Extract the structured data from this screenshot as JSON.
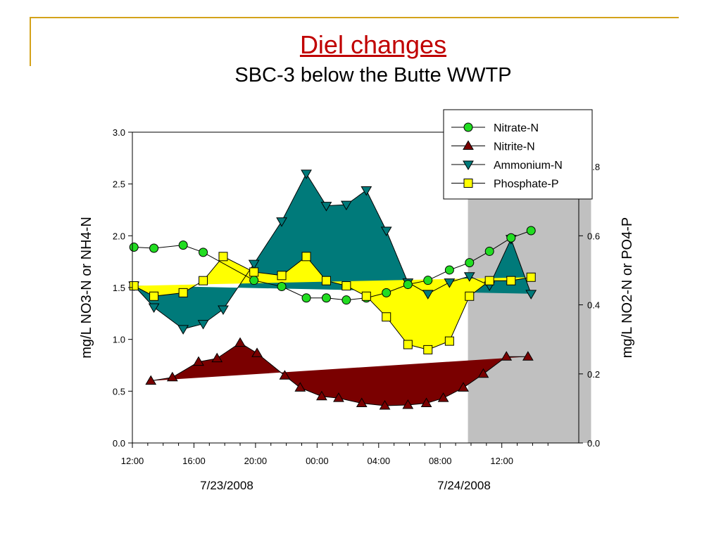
{
  "slide": {
    "title": "Diel changes",
    "subtitle": "SBC-3 below the Butte WWTP"
  },
  "chart_data": {
    "type": "line",
    "left_axis": {
      "label": "mg/L NO3-N or NH4-N",
      "ylim": [
        0,
        3.0
      ],
      "tick_labels": [
        "0.0",
        "0.5",
        "1.0",
        "1.5",
        "2.0",
        "2.5",
        "3.0"
      ]
    },
    "right_axis": {
      "label": "mg/L NO2-N or PO4-P",
      "ylim": [
        0,
        0.9
      ],
      "tick_labels": [
        "0.0",
        "0.2",
        "0.4",
        "0.6",
        "0.8"
      ]
    },
    "x_axis": {
      "unit": "hours from 7/23/2008 12:00",
      "range": [
        0,
        29
      ],
      "tick_labels": [
        "12:00",
        "16:00",
        "20:00",
        "00:00",
        "04:00",
        "08:00",
        "12:00"
      ],
      "date_labels": [
        "7/23/2008",
        "7/24/2008"
      ]
    },
    "night_shading": [
      21.8,
      29.8
    ],
    "legend": {
      "placement": "top-right",
      "entries": [
        "Nitrate-N",
        "Nitrite-N",
        "Ammonium-N",
        "Phosphate-P"
      ]
    },
    "series": [
      {
        "name": "Nitrate-N",
        "axis": "left",
        "marker": "circle",
        "color": "#22dd22",
        "x": [
          0.1,
          1.4,
          3.3,
          4.6,
          7.9,
          9.7,
          11.3,
          12.6,
          13.9,
          15.2,
          16.5,
          17.9,
          19.2,
          20.6,
          21.9,
          23.2,
          24.6,
          25.9
        ],
        "y": [
          1.89,
          1.88,
          1.91,
          1.84,
          1.57,
          1.51,
          1.4,
          1.4,
          1.38,
          1.4,
          1.45,
          1.53,
          1.57,
          1.67,
          1.74,
          1.85,
          1.98,
          2.05
        ]
      },
      {
        "name": "Nitrite-N",
        "axis": "right",
        "marker": "triangle-up",
        "color": "#7a0000",
        "x": [
          1.2,
          2.6,
          4.3,
          5.5,
          7.0,
          8.1,
          9.9,
          10.9,
          12.3,
          13.4,
          14.9,
          16.4,
          17.9,
          19.1,
          20.2,
          21.5,
          22.8,
          24.3,
          25.7
        ],
        "y": [
          0.18,
          0.19,
          0.235,
          0.245,
          0.29,
          0.26,
          0.195,
          0.16,
          0.135,
          0.13,
          0.115,
          0.108,
          0.11,
          0.115,
          0.13,
          0.16,
          0.2,
          0.25,
          0.25
        ]
      },
      {
        "name": "Ammonium-N",
        "axis": "left",
        "marker": "triangle-down",
        "color": "#007a7a",
        "x": [
          0.1,
          1.4,
          3.3,
          4.6,
          5.9,
          7.9,
          9.7,
          11.3,
          12.6,
          13.9,
          15.2,
          16.5,
          17.9,
          19.2,
          20.6,
          21.9,
          23.2,
          24.6,
          25.9
        ],
        "y": [
          1.52,
          1.31,
          1.1,
          1.15,
          1.29,
          1.73,
          2.14,
          2.6,
          2.29,
          2.3,
          2.44,
          2.05,
          1.55,
          1.44,
          1.55,
          1.61,
          1.52,
          1.97,
          1.44
        ]
      },
      {
        "name": "Phosphate-P",
        "axis": "right",
        "marker": "square",
        "color": "#ffff00",
        "x": [
          0.1,
          1.4,
          3.3,
          4.6,
          5.9,
          7.9,
          9.7,
          11.3,
          12.6,
          13.9,
          15.2,
          16.5,
          17.9,
          19.2,
          20.6,
          21.9,
          23.2,
          24.6,
          25.9
        ],
        "y": [
          0.455,
          0.425,
          0.435,
          0.47,
          0.54,
          0.495,
          0.485,
          0.54,
          0.47,
          0.455,
          0.425,
          0.365,
          0.285,
          0.27,
          0.295,
          0.425,
          0.47,
          0.47,
          0.48
        ]
      }
    ]
  }
}
